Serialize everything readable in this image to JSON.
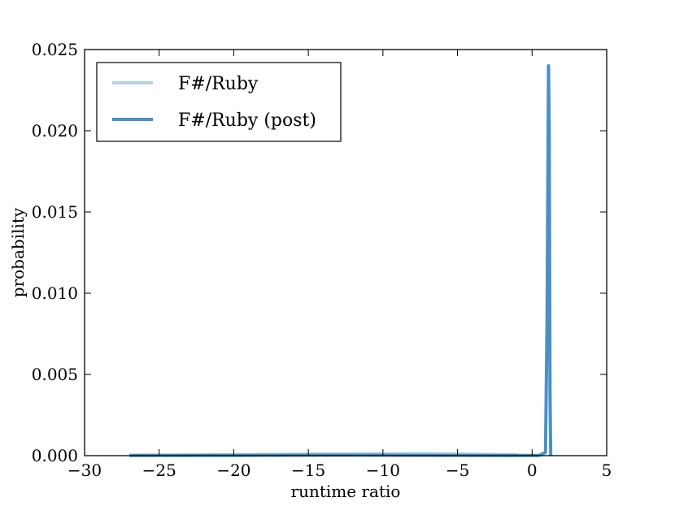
{
  "chart_data": {
    "type": "line",
    "title": "",
    "xlabel": "runtime ratio",
    "ylabel": "probability",
    "xlim": [
      -30,
      5
    ],
    "ylim": [
      0,
      0.025
    ],
    "xticks": [
      -30,
      -25,
      -20,
      -15,
      -10,
      -5,
      0,
      5
    ],
    "xtick_labels": [
      "−30",
      "−25",
      "−20",
      "−15",
      "−10",
      "−5",
      "0",
      "5"
    ],
    "yticks": [
      0,
      0.005,
      0.01,
      0.015,
      0.02,
      0.025
    ],
    "ytick_labels": [
      "0.000",
      "0.005",
      "0.010",
      "0.015",
      "0.020",
      "0.025"
    ],
    "grid": false,
    "legend_position": "top-left",
    "series": [
      {
        "name": "F#/Ruby",
        "color": "#b3d3e8",
        "x": [
          -27,
          -24,
          -21,
          -18,
          -15,
          -12,
          -10,
          -8,
          -6,
          -4,
          -2,
          -1
        ],
        "y": [
          2e-05,
          3e-05,
          5e-05,
          7e-05,
          9e-05,
          0.00011,
          0.00012,
          0.00012,
          0.00011,
          9e-05,
          6e-05,
          5e-05
        ]
      },
      {
        "name": "F#/Ruby (post)",
        "color": "#4a90c4",
        "x": [
          -27,
          -20,
          -15,
          -10,
          -5,
          0,
          0.5,
          0.9,
          1.0,
          1.1,
          1.15,
          1.2,
          1.25
        ],
        "y": [
          1e-05,
          2e-05,
          3e-05,
          3e-05,
          2e-05,
          1e-05,
          2e-05,
          0.0002,
          0.008,
          0.024,
          0.02,
          0.004,
          0
        ]
      }
    ]
  }
}
